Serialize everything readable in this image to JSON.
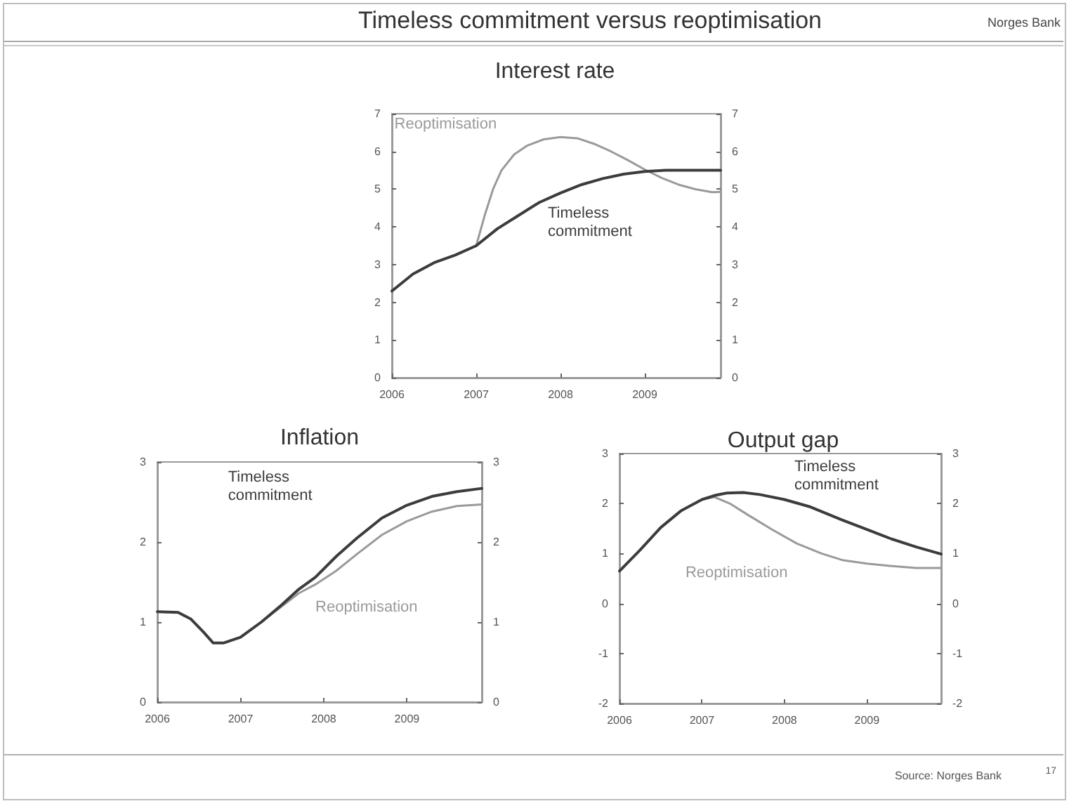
{
  "chart_data": [
    {
      "type": "line",
      "title": "Interest rate",
      "xlim": [
        2006,
        2009.9
      ],
      "xticks": [
        2006,
        2007,
        2008,
        2009
      ],
      "ylim": [
        0,
        7
      ],
      "yticks": [
        0,
        1,
        2,
        3,
        4,
        5,
        6,
        7
      ],
      "y2lim": [
        0,
        7
      ],
      "y2ticks": [
        0,
        1,
        2,
        3,
        4,
        5,
        6,
        7
      ],
      "marker": "none",
      "line_style": "solid",
      "series": [
        {
          "name": "Timeless commitment",
          "color": "#3c3c3c",
          "x": [
            2006,
            2006.25,
            2006.5,
            2006.75,
            2007,
            2007.25,
            2007.5,
            2007.75,
            2008,
            2008.25,
            2008.5,
            2008.75,
            2009,
            2009.25,
            2009.5,
            2009.75,
            2009.9
          ],
          "values": [
            2.3,
            2.75,
            3.05,
            3.25,
            3.5,
            3.95,
            4.3,
            4.65,
            4.9,
            5.12,
            5.28,
            5.4,
            5.47,
            5.5,
            5.5,
            5.5,
            5.5
          ]
        },
        {
          "name": "Reoptimisation",
          "color": "#9a9a9a",
          "x": [
            2007,
            2007.1,
            2007.2,
            2007.3,
            2007.45,
            2007.6,
            2007.8,
            2008,
            2008.2,
            2008.4,
            2008.6,
            2008.8,
            2009,
            2009.2,
            2009.4,
            2009.6,
            2009.8,
            2009.9
          ],
          "values": [
            3.5,
            4.3,
            5.0,
            5.5,
            5.92,
            6.15,
            6.32,
            6.38,
            6.35,
            6.2,
            6.0,
            5.77,
            5.52,
            5.3,
            5.12,
            5.0,
            4.92,
            4.93
          ]
        }
      ],
      "annotations": [
        "Timeless commitment versus reoptimisation",
        "Norges Bank"
      ]
    },
    {
      "type": "line",
      "title": "Inflation",
      "xlim": [
        2006,
        2009.9
      ],
      "xticks": [
        2006,
        2007,
        2008,
        2009
      ],
      "ylim": [
        0,
        3
      ],
      "yticks": [
        0,
        1,
        2,
        3
      ],
      "y2lim": [
        0,
        3
      ],
      "y2ticks": [
        0,
        1,
        2,
        3
      ],
      "marker": "none",
      "line_style": "solid",
      "series": [
        {
          "name": "Timeless commitment",
          "color": "#3c3c3c",
          "x": [
            2006,
            2006.25,
            2006.4,
            2006.55,
            2006.67,
            2006.8,
            2007,
            2007.25,
            2007.5,
            2007.7,
            2007.9,
            2008.15,
            2008.4,
            2008.7,
            2009,
            2009.3,
            2009.6,
            2009.9
          ],
          "values": [
            1.13,
            1.12,
            1.04,
            0.88,
            0.74,
            0.74,
            0.81,
            1.0,
            1.22,
            1.41,
            1.56,
            1.82,
            2.05,
            2.3,
            2.46,
            2.57,
            2.63,
            2.67
          ]
        },
        {
          "name": "Reoptimisation",
          "color": "#9a9a9a",
          "x": [
            2007,
            2007.25,
            2007.5,
            2007.7,
            2007.9,
            2008.15,
            2008.4,
            2008.7,
            2009,
            2009.3,
            2009.6,
            2009.9
          ],
          "values": [
            0.81,
            1.0,
            1.2,
            1.36,
            1.47,
            1.64,
            1.85,
            2.09,
            2.26,
            2.38,
            2.45,
            2.47
          ]
        }
      ]
    },
    {
      "type": "line",
      "title": "Output gap",
      "xlim": [
        2006,
        2009.9
      ],
      "xticks": [
        2006,
        2007,
        2008,
        2009
      ],
      "ylim": [
        -2,
        3
      ],
      "yticks": [
        -2,
        -1,
        0,
        1,
        2,
        3
      ],
      "y2lim": [
        -2,
        3
      ],
      "y2ticks": [
        -2,
        -1,
        0,
        1,
        2,
        3
      ],
      "marker": "none",
      "line_style": "solid",
      "series": [
        {
          "name": "Timeless commitment",
          "color": "#3c3c3c",
          "x": [
            2006,
            2006.25,
            2006.5,
            2006.75,
            2007,
            2007.15,
            2007.3,
            2007.5,
            2007.7,
            2008,
            2008.3,
            2008.7,
            2009,
            2009.3,
            2009.6,
            2009.9
          ],
          "values": [
            0.65,
            1.07,
            1.52,
            1.86,
            2.08,
            2.16,
            2.21,
            2.22,
            2.18,
            2.08,
            1.94,
            1.67,
            1.48,
            1.29,
            1.13,
            0.99
          ]
        },
        {
          "name": "Reoptimisation",
          "color": "#9a9a9a",
          "x": [
            2007,
            2007.15,
            2007.35,
            2007.55,
            2007.85,
            2008.15,
            2008.45,
            2008.7,
            2009,
            2009.3,
            2009.6,
            2009.9
          ],
          "values": [
            2.08,
            2.13,
            1.99,
            1.78,
            1.48,
            1.2,
            1.0,
            0.87,
            0.8,
            0.75,
            0.71,
            0.71
          ]
        }
      ],
      "annotations": [
        "Source: Norges Bank",
        "17"
      ]
    }
  ]
}
